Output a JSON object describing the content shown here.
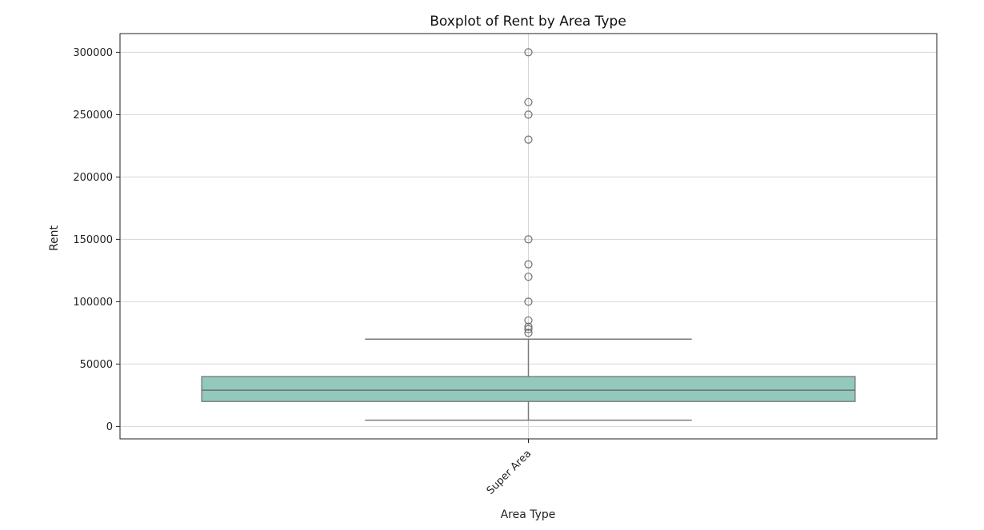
{
  "chart_data": {
    "type": "box",
    "title": "Boxplot of Rent by Area Type",
    "xlabel": "Area Type",
    "ylabel": "Rent",
    "ylim": [
      -10000,
      315000
    ],
    "yticks": [
      0,
      50000,
      100000,
      150000,
      200000,
      250000,
      300000
    ],
    "ytick_labels": [
      "0",
      "50000",
      "100000",
      "150000",
      "200000",
      "250000",
      "300000"
    ],
    "grid": true,
    "categories": [
      "Super Area"
    ],
    "boxes": [
      {
        "category": "Super Area",
        "whisker_low": 5000,
        "q1": 20000,
        "median": 29000,
        "q3": 40000,
        "whisker_high": 70000,
        "outliers": [
          75000,
          78000,
          80000,
          85000,
          100000,
          120000,
          130000,
          150000,
          230000,
          250000,
          260000,
          300000
        ]
      }
    ],
    "colors": {
      "box_fill": "#93c9bd",
      "box_edge": "#6e6e6e",
      "whisker": "#7a7a7a",
      "grid": "#d6d6d6",
      "outlier_edge": "#6e6e6e"
    }
  }
}
